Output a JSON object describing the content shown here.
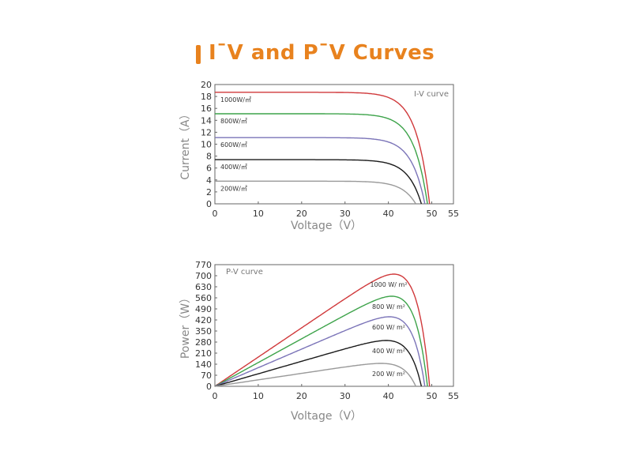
{
  "title": "I¯V and P¯V Curves",
  "colors": {
    "accent": "#e8821e",
    "series": [
      "#d0393b",
      "#3da34a",
      "#7b74b8",
      "#1a1a1a",
      "#999999"
    ]
  },
  "chart_data": [
    {
      "type": "line",
      "title": "I-V curve",
      "xlabel": "Voltage（V）",
      "ylabel": "Current（A）",
      "xlim": [
        0,
        55
      ],
      "ylim": [
        0,
        20
      ],
      "xticks": [
        0,
        10,
        20,
        30,
        40,
        50,
        55
      ],
      "yticks": [
        0,
        2,
        4,
        6,
        8,
        10,
        12,
        14,
        16,
        18,
        20
      ],
      "grid": false,
      "series": [
        {
          "name": "1000W/㎡",
          "isc": 18.7,
          "voc": 49.5
        },
        {
          "name": "800W/㎡",
          "isc": 15.1,
          "voc": 49.0
        },
        {
          "name": "600W/㎡",
          "isc": 11.1,
          "voc": 48.4
        },
        {
          "name": "400W/㎡",
          "isc": 7.4,
          "voc": 47.6
        },
        {
          "name": "200W/㎡",
          "isc": 3.8,
          "voc": 46.3
        }
      ]
    },
    {
      "type": "line",
      "title": "P-V curve",
      "xlabel": "Voltage（V）",
      "ylabel": "Power（W）",
      "xlim": [
        0,
        55
      ],
      "ylim": [
        0,
        770
      ],
      "xticks": [
        0,
        10,
        20,
        30,
        40,
        50,
        55
      ],
      "yticks": [
        0,
        70,
        140,
        210,
        280,
        350,
        420,
        490,
        560,
        630,
        700,
        770
      ],
      "grid": false,
      "series": [
        {
          "name": "1000 W/ m²",
          "pmax": 710,
          "vmp": 40.5
        },
        {
          "name": "800 W/ m²",
          "pmax": 570,
          "vmp": 40.5
        },
        {
          "name": "600 W/ m²",
          "pmax": 440,
          "vmp": 40.5
        },
        {
          "name": "400 W/ m²",
          "pmax": 290,
          "vmp": 40.2
        },
        {
          "name": "200 W/ m²",
          "pmax": 145,
          "vmp": 39.5
        }
      ]
    }
  ]
}
